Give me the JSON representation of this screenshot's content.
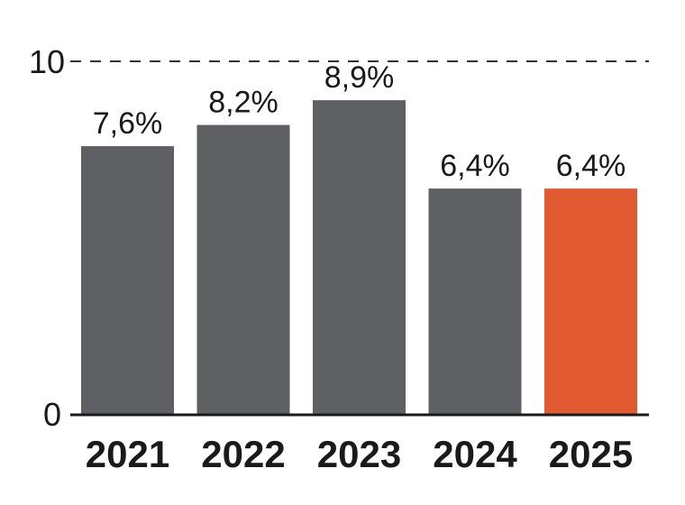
{
  "chart_data": {
    "type": "bar",
    "title": "",
    "xlabel": "",
    "ylabel": "",
    "categories": [
      "2021",
      "2022",
      "2023",
      "2024",
      "2025"
    ],
    "values": [
      7.6,
      8.2,
      8.9,
      6.4,
      6.4
    ],
    "data_labels": [
      "7,6%",
      "8,2%",
      "8,9%",
      "6,4%",
      "6,4%"
    ],
    "ylim": [
      0,
      10
    ],
    "yticks": [
      0,
      10
    ],
    "ytick_labels": [
      "0",
      "10"
    ],
    "gridline_at": 10,
    "gridline_style": "dashed",
    "legend": "none",
    "colors": {
      "default_bar": "#5f6063",
      "highlight_bar": "#e15a32",
      "axis": "#1a1a1a",
      "gridline": "#333333"
    },
    "highlight_index": 4
  }
}
